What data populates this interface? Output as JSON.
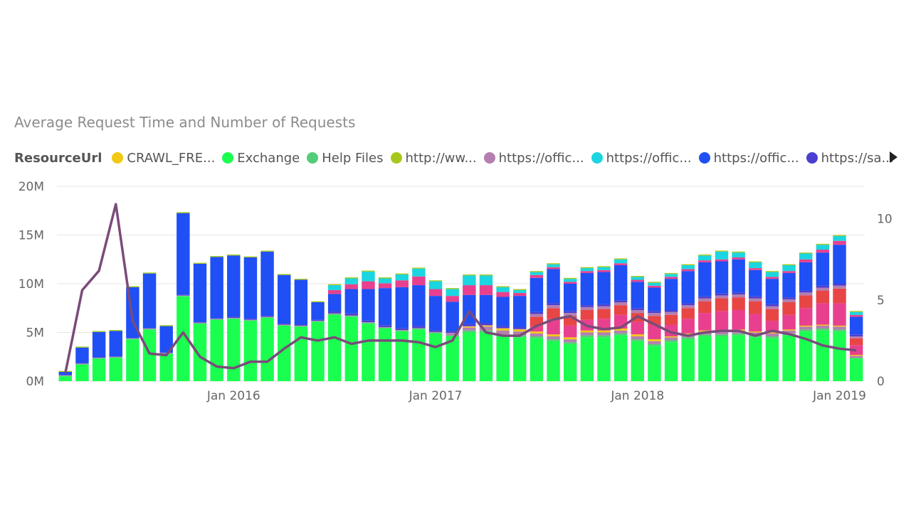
{
  "chart_data": {
    "type": "bar",
    "title": "Average Request Time and Number of Requests",
    "legend_title": "ResourceUrl",
    "legend": [
      {
        "label": "CRAWL_FRE...",
        "color": "#F2C811"
      },
      {
        "label": "Exchange",
        "color": "#1AFF4F"
      },
      {
        "label": "Help Files",
        "color": "#55CC77"
      },
      {
        "label": "http://ww...",
        "color": "#A6C81A"
      },
      {
        "label": "https://offic...",
        "color": "#B47FB0"
      },
      {
        "label": "https://offic...",
        "color": "#1BD6E0"
      },
      {
        "label": "https://offic...",
        "color": "#1F4FF5"
      },
      {
        "label": "https://sa...",
        "color": "#4B3FD0"
      }
    ],
    "extra_colors": {
      "pink": "#E8408F",
      "red": "#E84545",
      "line": "#7A4B7A"
    },
    "y_left": {
      "ticks": [
        "0M",
        "5M",
        "10M",
        "15M",
        "20M"
      ],
      "range": [
        0,
        20
      ]
    },
    "y_right": {
      "ticks": [
        "0",
        "5",
        "10"
      ],
      "range": [
        0,
        12
      ]
    },
    "x_ticks": [
      {
        "label": "Jan 2016",
        "index": 10
      },
      {
        "label": "Jan 2017",
        "index": 22
      },
      {
        "label": "Jan 2018",
        "index": 34
      },
      {
        "label": "Jan 2019",
        "index": 46
      }
    ],
    "categories": [
      "2015-03",
      "2015-04",
      "2015-05",
      "2015-06",
      "2015-07",
      "2015-08",
      "2015-09",
      "2015-10",
      "2015-11",
      "2015-12",
      "2016-01",
      "2016-02",
      "2016-03",
      "2016-04",
      "2016-05",
      "2016-06",
      "2016-07",
      "2016-08",
      "2016-09",
      "2016-10",
      "2016-11",
      "2016-12",
      "2017-01",
      "2017-02",
      "2017-03",
      "2017-04",
      "2017-05",
      "2017-06",
      "2017-07",
      "2017-08",
      "2017-09",
      "2017-10",
      "2017-11",
      "2017-12",
      "2018-01",
      "2018-02",
      "2018-03",
      "2018-04",
      "2018-05",
      "2018-06",
      "2018-07",
      "2018-08",
      "2018-09",
      "2018-10",
      "2018-11",
      "2018-12",
      "2019-01",
      "2019-02"
    ],
    "stacks": [
      {
        "name": "Exchange",
        "color": "#1AFF4F",
        "values": [
          0.5,
          1.7,
          2.3,
          2.4,
          4.3,
          5.3,
          2.8,
          8.7,
          5.9,
          6.3,
          6.4,
          6.2,
          6.5,
          5.7,
          5.6,
          6.1,
          6.8,
          6.6,
          5.9,
          5.4,
          5.1,
          5.3,
          4.9,
          4.6,
          5.0,
          5.0,
          4.6,
          4.5,
          4.4,
          4.1,
          3.8,
          4.5,
          4.5,
          4.7,
          4.1,
          3.6,
          4.0,
          4.3,
          4.6,
          4.6,
          4.7,
          4.5,
          4.4,
          4.7,
          5.1,
          5.2,
          5.1,
          2.3
        ]
      },
      {
        "name": "Help Files",
        "color": "#55CC77",
        "values": [
          0.05,
          0.05,
          0.05,
          0.05,
          0.05,
          0.05,
          0.05,
          0.05,
          0.05,
          0.05,
          0.05,
          0.05,
          0.05,
          0.05,
          0.05,
          0.05,
          0.1,
          0.1,
          0.1,
          0.1,
          0.1,
          0.1,
          0.1,
          0.1,
          0.2,
          0.2,
          0.2,
          0.2,
          0.2,
          0.2,
          0.2,
          0.2,
          0.2,
          0.2,
          0.2,
          0.2,
          0.2,
          0.2,
          0.2,
          0.2,
          0.2,
          0.2,
          0.2,
          0.2,
          0.2,
          0.2,
          0.2,
          0.1
        ]
      },
      {
        "name": "https://offic...",
        "color": "#B47FB0",
        "values": [
          0.0,
          0.0,
          0.0,
          0.0,
          0.0,
          0.0,
          0.0,
          0.0,
          0.0,
          0.0,
          0.0,
          0.0,
          0.0,
          0.0,
          0.0,
          0.0,
          0.0,
          0.0,
          0.0,
          0.0,
          0.0,
          0.0,
          0.0,
          0.2,
          0.3,
          0.4,
          0.4,
          0.4,
          0.3,
          0.3,
          0.3,
          0.3,
          0.3,
          0.3,
          0.3,
          0.3,
          0.3,
          0.3,
          0.3,
          0.3,
          0.3,
          0.3,
          0.3,
          0.3,
          0.3,
          0.3,
          0.3,
          0.2
        ]
      },
      {
        "name": "CRAWL_FRE...",
        "color": "#F2C811",
        "values": [
          0.0,
          0.0,
          0.0,
          0.0,
          0.0,
          0.0,
          0.0,
          0.0,
          0.0,
          0.0,
          0.0,
          0.0,
          0.0,
          0.0,
          0.0,
          0.0,
          0.0,
          0.0,
          0.0,
          0.0,
          0.0,
          0.0,
          0.0,
          0.0,
          0.1,
          0.1,
          0.2,
          0.2,
          0.2,
          0.2,
          0.2,
          0.2,
          0.2,
          0.2,
          0.2,
          0.2,
          0.1,
          0.1,
          0.1,
          0.1,
          0.1,
          0.1,
          0.1,
          0.1,
          0.1,
          0.1,
          0.1,
          0.1
        ]
      },
      {
        "name": "pink",
        "color": "#E8408F",
        "values": [
          0.0,
          0.0,
          0.0,
          0.0,
          0.0,
          0.0,
          0.0,
          0.0,
          0.0,
          0.0,
          0.0,
          0.0,
          0.0,
          0.0,
          0.0,
          0.0,
          0.0,
          0.0,
          0.0,
          0.0,
          0.0,
          0.0,
          0.0,
          0.0,
          0.0,
          0.0,
          0.0,
          0.0,
          0.5,
          1.6,
          1.2,
          1.1,
          1.2,
          1.4,
          1.3,
          1.5,
          1.2,
          1.5,
          1.8,
          2.0,
          2.0,
          1.8,
          1.2,
          1.5,
          1.8,
          2.2,
          2.3,
          1.0
        ]
      },
      {
        "name": "red",
        "color": "#E84545",
        "values": [
          0.0,
          0.0,
          0.0,
          0.0,
          0.0,
          0.0,
          0.0,
          0.0,
          0.0,
          0.0,
          0.0,
          0.0,
          0.0,
          0.0,
          0.0,
          0.0,
          0.0,
          0.0,
          0.0,
          0.0,
          0.0,
          0.0,
          0.0,
          0.0,
          0.0,
          0.0,
          0.0,
          0.0,
          1.0,
          1.1,
          1.0,
          1.0,
          1.0,
          1.0,
          0.9,
          0.9,
          1.0,
          1.1,
          1.2,
          1.3,
          1.3,
          1.3,
          1.2,
          1.3,
          1.3,
          1.3,
          1.5,
          0.7
        ]
      },
      {
        "name": "https://offic...",
        "color": "#B47FB0",
        "values": [
          0.05,
          0.05,
          0.05,
          0.05,
          0.05,
          0.05,
          0.05,
          0.05,
          0.05,
          0.05,
          0.05,
          0.05,
          0.05,
          0.05,
          0.05,
          0.05,
          0.05,
          0.05,
          0.05,
          0.05,
          0.05,
          0.05,
          0.05,
          0.05,
          0.05,
          0.05,
          0.05,
          0.05,
          0.3,
          0.3,
          0.3,
          0.3,
          0.3,
          0.3,
          0.3,
          0.3,
          0.3,
          0.3,
          0.3,
          0.3,
          0.3,
          0.3,
          0.3,
          0.3,
          0.3,
          0.3,
          0.3,
          0.2
        ]
      },
      {
        "name": "https://sa...",
        "color": "#4B3FD0",
        "values": [
          0.05,
          0.05,
          0.05,
          0.05,
          0.05,
          0.05,
          0.05,
          0.05,
          0.05,
          0.05,
          0.1,
          0.1,
          0.1,
          0.1,
          0.1,
          0.1,
          0.2,
          0.2,
          0.2,
          0.2,
          0.2,
          0.2,
          0.2,
          0.2,
          0.2,
          0.2,
          0.2,
          0.2,
          0.2,
          0.2,
          0.2,
          0.2,
          0.2,
          0.2,
          0.2,
          0.2,
          0.2,
          0.2,
          0.2,
          0.2,
          0.2,
          0.2,
          0.2,
          0.2,
          0.2,
          0.2,
          0.2,
          0.2
        ]
      },
      {
        "name": "https://offic...",
        "color": "#1F4FF5",
        "values": [
          0.3,
          1.6,
          2.6,
          2.6,
          5.2,
          5.6,
          2.7,
          8.4,
          6.0,
          6.3,
          6.3,
          6.3,
          6.6,
          5.0,
          4.6,
          1.8,
          1.8,
          2.5,
          3.2,
          3.8,
          4.2,
          4.2,
          3.5,
          3.0,
          3.0,
          2.9,
          3.0,
          3.2,
          3.5,
          3.5,
          2.8,
          3.3,
          3.3,
          3.6,
          2.7,
          2.4,
          3.2,
          3.3,
          3.5,
          3.3,
          3.4,
          2.7,
          2.6,
          2.5,
          2.9,
          3.4,
          4.0,
          1.8
        ]
      },
      {
        "name": "https://offic...",
        "color": "#E8408F",
        "values": [
          0.0,
          0.0,
          0.0,
          0.0,
          0.0,
          0.0,
          0.0,
          0.0,
          0.0,
          0.0,
          0.0,
          0.0,
          0.0,
          0.0,
          0.0,
          0.0,
          0.4,
          0.5,
          0.8,
          0.5,
          0.7,
          0.9,
          0.7,
          0.6,
          1.0,
          1.0,
          0.5,
          0.3,
          0.3,
          0.2,
          0.2,
          0.2,
          0.2,
          0.2,
          0.2,
          0.2,
          0.2,
          0.2,
          0.2,
          0.2,
          0.2,
          0.2,
          0.2,
          0.2,
          0.3,
          0.3,
          0.4,
          0.2
        ]
      },
      {
        "name": "https://offic...",
        "color": "#1BD6E0",
        "values": [
          0.0,
          0.0,
          0.0,
          0.0,
          0.0,
          0.0,
          0.0,
          0.0,
          0.0,
          0.0,
          0.0,
          0.0,
          0.0,
          0.0,
          0.0,
          0.0,
          0.5,
          0.6,
          1.0,
          0.5,
          0.6,
          0.8,
          0.8,
          0.7,
          1.0,
          1.0,
          0.5,
          0.3,
          0.3,
          0.3,
          0.3,
          0.3,
          0.3,
          0.4,
          0.3,
          0.3,
          0.3,
          0.4,
          0.5,
          0.8,
          0.5,
          0.6,
          0.5,
          0.6,
          0.6,
          0.5,
          0.5,
          0.3
        ]
      },
      {
        "name": "http://ww...",
        "color": "#A6C81A",
        "values": [
          0.1,
          0.1,
          0.1,
          0.1,
          0.1,
          0.1,
          0.1,
          0.1,
          0.1,
          0.1,
          0.1,
          0.1,
          0.1,
          0.1,
          0.1,
          0.1,
          0.1,
          0.1,
          0.1,
          0.1,
          0.1,
          0.1,
          0.1,
          0.1,
          0.1,
          0.1,
          0.1,
          0.1,
          0.1,
          0.1,
          0.1,
          0.1,
          0.1,
          0.1,
          0.1,
          0.1,
          0.1,
          0.1,
          0.1,
          0.1,
          0.1,
          0.1,
          0.1,
          0.1,
          0.1,
          0.1,
          0.1,
          0.1
        ]
      }
    ],
    "line": {
      "name": "Average Request Time",
      "color": "#7A4B7A",
      "values": [
        0.5,
        5.6,
        6.8,
        10.9,
        3.7,
        1.7,
        1.6,
        3.0,
        1.5,
        0.9,
        0.8,
        1.2,
        1.2,
        2.0,
        2.7,
        2.5,
        2.7,
        2.3,
        2.5,
        2.5,
        2.5,
        2.4,
        2.1,
        2.5,
        4.3,
        3.0,
        2.8,
        2.8,
        3.4,
        3.8,
        4.0,
        3.4,
        3.2,
        3.3,
        4.0,
        3.5,
        3.0,
        2.8,
        3.0,
        3.1,
        3.1,
        2.8,
        3.1,
        2.9,
        2.6,
        2.2,
        2.0,
        1.9
      ]
    }
  }
}
